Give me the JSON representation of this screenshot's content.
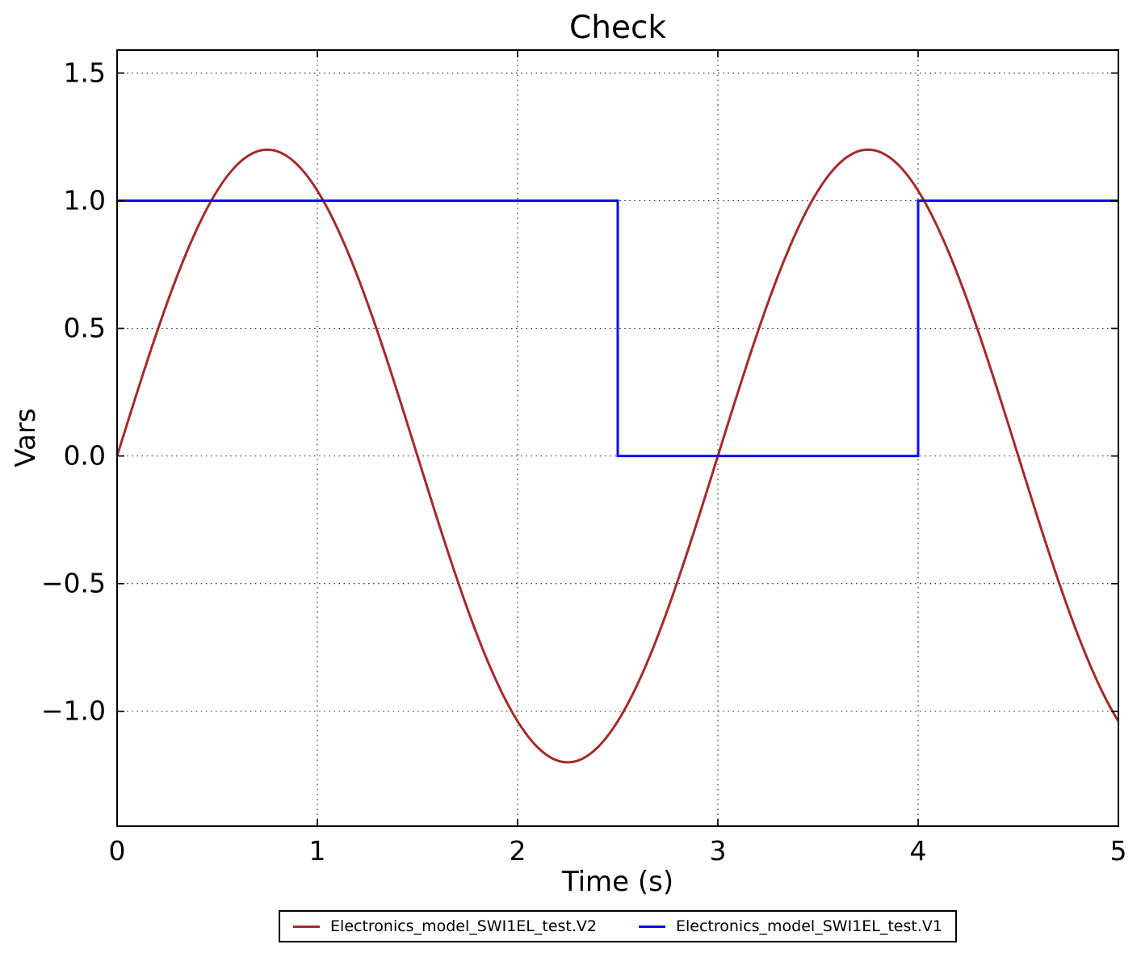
{
  "chart_data": {
    "type": "line",
    "title": "Check",
    "xlabel": "Time (s)",
    "ylabel": "Vars",
    "xlim": [
      0,
      5
    ],
    "ylim": [
      -1.45,
      1.59
    ],
    "xticks": {
      "values": [
        0,
        1,
        2,
        3,
        4,
        5
      ],
      "labels": [
        "0",
        "1",
        "2",
        "3",
        "4",
        "5"
      ]
    },
    "yticks": {
      "values": [
        1.5,
        1.0,
        0.5,
        0.0,
        -0.5,
        -1.0
      ],
      "labels": [
        "1.5",
        "1.0",
        "0.5",
        "0.0",
        "−0.5",
        "−1.0"
      ]
    },
    "grid": {
      "visible": true,
      "style": "dotted",
      "color": "#1a1a1a"
    },
    "legend": {
      "position": "bottom-center",
      "frame": true
    },
    "series": [
      {
        "name": "Electronics_model_SWI1EL_test.V2",
        "color": "#a52a2a",
        "line_width": 3,
        "shape": "sine",
        "amplitude": 1.2,
        "period": 3,
        "phase": 0,
        "x_range": [
          0,
          5
        ],
        "sample_points": [
          [
            0.0,
            0.0
          ],
          [
            0.25,
            0.6
          ],
          [
            0.5,
            1.0392
          ],
          [
            0.75,
            1.2
          ],
          [
            1.0,
            1.0392
          ],
          [
            1.25,
            0.6
          ],
          [
            1.5,
            0.0
          ],
          [
            1.75,
            -0.6
          ],
          [
            2.0,
            -1.0392
          ],
          [
            2.25,
            -1.2
          ],
          [
            2.5,
            -1.0392
          ],
          [
            2.75,
            -0.6
          ],
          [
            3.0,
            0.0
          ],
          [
            3.25,
            0.6
          ],
          [
            3.5,
            1.0392
          ],
          [
            3.75,
            1.2
          ],
          [
            4.0,
            1.0392
          ],
          [
            4.25,
            0.6
          ],
          [
            4.5,
            0.0
          ],
          [
            4.75,
            -0.6
          ],
          [
            5.0,
            -1.0392
          ]
        ]
      },
      {
        "name": "Electronics_model_SWI1EL_test.V1",
        "color": "#0d0dee",
        "line_width": 3,
        "shape": "steps",
        "points": [
          [
            0.0,
            1.0
          ],
          [
            2.5,
            1.0
          ],
          [
            2.5,
            0.0
          ],
          [
            4.0,
            0.0
          ],
          [
            4.0,
            1.0
          ],
          [
            5.0,
            1.0
          ]
        ]
      }
    ]
  }
}
